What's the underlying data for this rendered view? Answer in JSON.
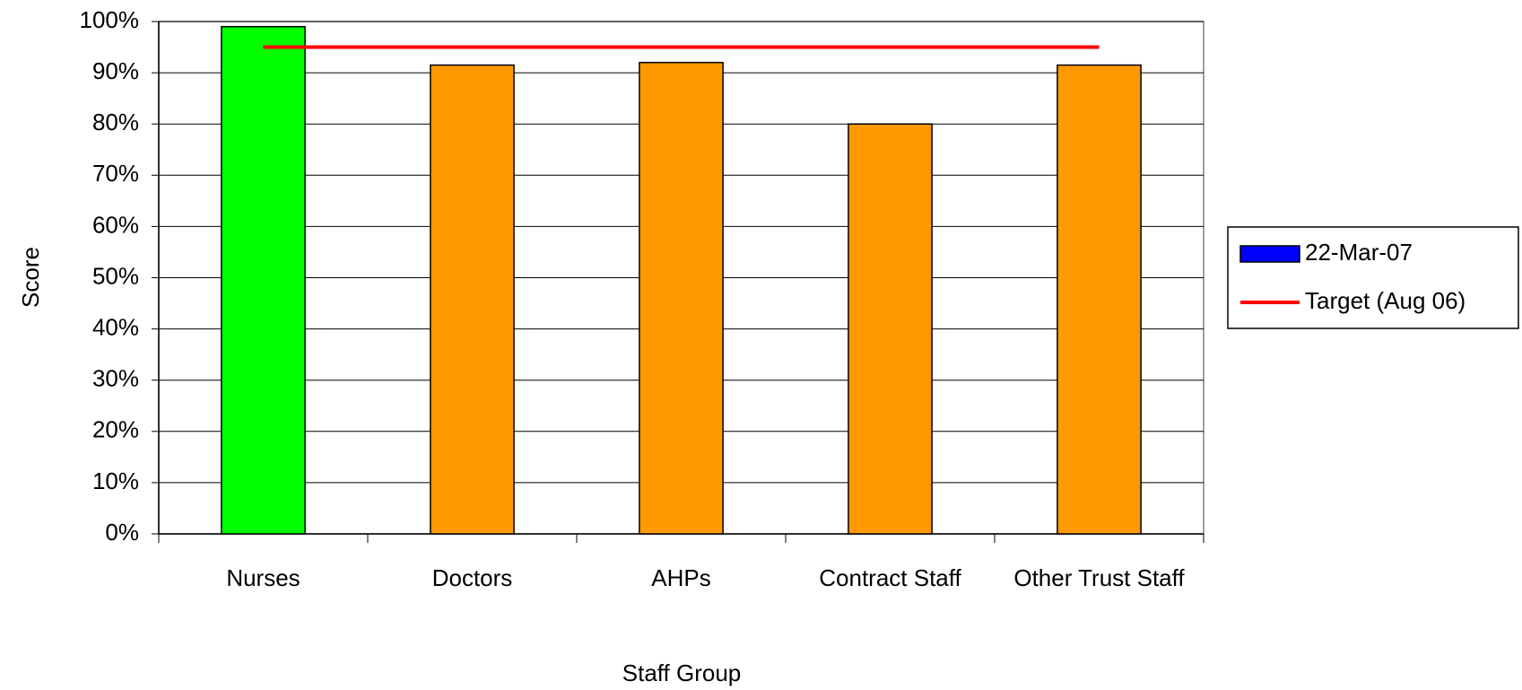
{
  "chart_data": {
    "type": "bar",
    "xlabel": "Staff Group",
    "ylabel": "Score",
    "categories": [
      "Nurses",
      "Doctors",
      "AHPs",
      "Contract Staff",
      "Other Trust Staff"
    ],
    "series": [
      {
        "name": "22-Mar-07",
        "type": "bar",
        "color": "#0000ff",
        "point_colors": [
          "#00ff00",
          "#ff9900",
          "#ff9900",
          "#ff9900",
          "#ff9900"
        ],
        "values": [
          99,
          91.5,
          92,
          80,
          91.5
        ]
      },
      {
        "name": "Target (Aug 06)",
        "type": "line",
        "color": "#ff0000",
        "values": [
          95,
          95,
          95,
          95,
          95
        ]
      }
    ],
    "ylim": [
      0,
      100
    ],
    "yticks": [
      {
        "value": 0,
        "label": "0%"
      },
      {
        "value": 10,
        "label": "10%"
      },
      {
        "value": 20,
        "label": "20%"
      },
      {
        "value": 30,
        "label": "30%"
      },
      {
        "value": 40,
        "label": "40%"
      },
      {
        "value": 50,
        "label": "50%"
      },
      {
        "value": 60,
        "label": "60%"
      },
      {
        "value": 70,
        "label": "70%"
      },
      {
        "value": 80,
        "label": "80%"
      },
      {
        "value": 90,
        "label": "90%"
      },
      {
        "value": 100,
        "label": "100%"
      }
    ],
    "grid": true,
    "legend": "right"
  }
}
